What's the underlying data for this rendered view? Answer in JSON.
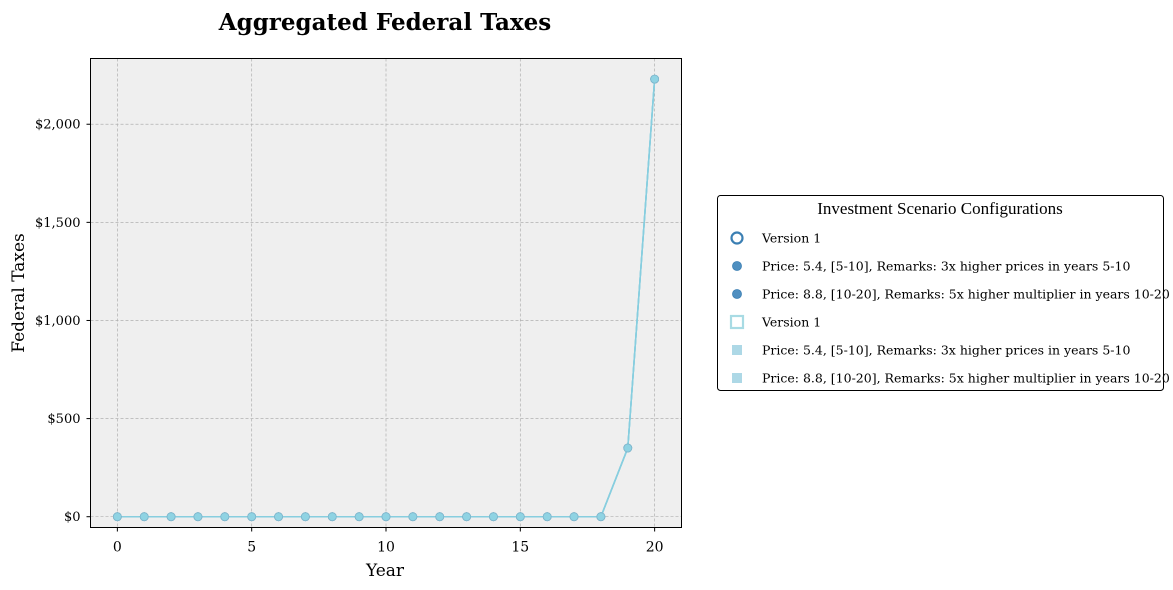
{
  "chart_data": {
    "type": "line",
    "title": "Aggregated Federal Taxes",
    "xlabel": "Year",
    "ylabel": "Federal Taxes",
    "xlim": [
      -1,
      21
    ],
    "ylim": [
      -55,
      2335
    ],
    "x_ticks": [
      0,
      5,
      10,
      15,
      20
    ],
    "y_ticks": [
      0,
      500,
      1000,
      1500,
      2000
    ],
    "y_tick_labels": [
      "$0",
      "$500",
      "$1,000",
      "$1,500",
      "$2,000"
    ],
    "grid": true,
    "legend_placement": "center-right (outside plot)",
    "x": [
      0,
      1,
      2,
      3,
      4,
      5,
      6,
      7,
      8,
      9,
      10,
      11,
      12,
      13,
      14,
      15,
      16,
      17,
      18,
      19,
      20
    ],
    "series": [
      {
        "name": "Price: 5.4, [5-10], Remarks: 3x higher prices in years 5-10",
        "color": "#4682b4",
        "marker": "circle",
        "values": [
          0,
          0,
          0,
          0,
          0,
          0,
          0,
          0,
          0,
          0,
          0,
          0,
          0,
          0,
          0,
          0,
          0,
          0,
          0,
          350,
          2230
        ]
      },
      {
        "name": "Price: 8.8, [10-20], Remarks: 5x higher multiplier in years 10-20",
        "color": "#4682b4",
        "marker": "circle",
        "values": [
          0,
          0,
          0,
          0,
          0,
          0,
          0,
          0,
          0,
          0,
          0,
          0,
          0,
          0,
          0,
          0,
          0,
          0,
          0,
          350,
          2230
        ]
      },
      {
        "name": "Price: 5.4, [5-10], Remarks: 3x higher prices in years 5-10",
        "color": "#87cedf",
        "marker": "square",
        "values": [
          0,
          0,
          0,
          0,
          0,
          0,
          0,
          0,
          0,
          0,
          0,
          0,
          0,
          0,
          0,
          0,
          0,
          0,
          0,
          350,
          2230
        ]
      },
      {
        "name": "Price: 8.8, [10-20], Remarks: 5x higher multiplier in years 10-20",
        "color": "#87cedf",
        "marker": "circle",
        "values": [
          0,
          0,
          0,
          0,
          0,
          0,
          0,
          0,
          0,
          0,
          0,
          0,
          0,
          0,
          0,
          0,
          0,
          0,
          0,
          350,
          2230
        ]
      }
    ],
    "legend": {
      "title": "Investment Scenario Configurations",
      "entries": [
        {
          "label": "Version 1",
          "marker": "circle-open",
          "color": "#3b7fb3"
        },
        {
          "label": "Price: 5.4, [5-10], Remarks: 3x higher prices in years 5-10",
          "marker": "circle",
          "color": "#4f8fc0"
        },
        {
          "label": "Price: 8.8, [10-20], Remarks: 5x higher multiplier in years 10-20",
          "marker": "circle",
          "color": "#4f8fc0"
        },
        {
          "label": "Version 1",
          "marker": "square-open",
          "color": "#a8dbe4"
        },
        {
          "label": "Price: 5.4, [5-10], Remarks: 3x higher prices in years 5-10",
          "marker": "square",
          "color": "#add8e6"
        },
        {
          "label": "Price: 8.8, [10-20], Remarks: 5x higher multiplier in years 10-20",
          "marker": "square",
          "color": "#add8e6"
        }
      ]
    },
    "colors": {
      "plot_background": "#efefef",
      "grid": "#b0b0b0",
      "line": "#87cedf",
      "marker_fill": "#8fd3e3",
      "marker_edge": "#7fb6cc"
    }
  }
}
